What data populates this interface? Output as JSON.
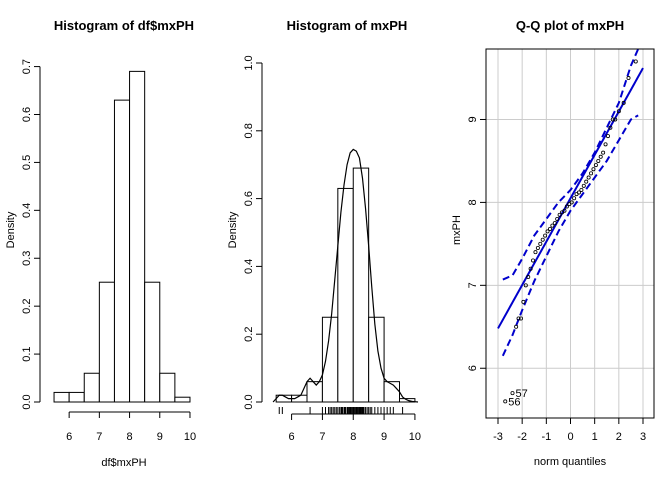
{
  "chart_data": [
    {
      "type": "bar",
      "title": "Histogram of df$mxPH",
      "xlabel": "df$mxPH",
      "ylabel": "Density",
      "xlim": [
        5.3,
        10.1
      ],
      "ylim": [
        0,
        0.72
      ],
      "x_ticks": [
        "6",
        "7",
        "8",
        "9",
        "10"
      ],
      "x_tick_values": [
        6,
        7,
        8,
        9,
        10
      ],
      "y_ticks": [
        "0.0",
        "0.1",
        "0.2",
        "0.3",
        "0.4",
        "0.5",
        "0.6",
        "0.7"
      ],
      "y_tick_values": [
        0,
        0.1,
        0.2,
        0.3,
        0.4,
        0.5,
        0.6,
        0.7
      ],
      "bins": [
        {
          "start": 5.5,
          "end": 6.0,
          "density": 0.02
        },
        {
          "start": 6.0,
          "end": 6.5,
          "density": 0.02
        },
        {
          "start": 6.5,
          "end": 7.0,
          "density": 0.06
        },
        {
          "start": 7.0,
          "end": 7.5,
          "density": 0.25
        },
        {
          "start": 7.5,
          "end": 8.0,
          "density": 0.63
        },
        {
          "start": 8.0,
          "end": 8.5,
          "density": 0.69
        },
        {
          "start": 8.5,
          "end": 9.0,
          "density": 0.25
        },
        {
          "start": 9.0,
          "end": 9.5,
          "density": 0.06
        },
        {
          "start": 9.5,
          "end": 10.0,
          "density": 0.01
        }
      ]
    },
    {
      "type": "bar",
      "title": "Histogram of mxPH",
      "xlabel": "",
      "ylabel": "Density",
      "xlim": [
        5.3,
        10.1
      ],
      "ylim": [
        0,
        1.0
      ],
      "x_ticks": [
        "6",
        "7",
        "8",
        "9",
        "10"
      ],
      "x_tick_values": [
        6,
        7,
        8,
        9,
        10
      ],
      "y_ticks": [
        "0.0",
        "0.2",
        "0.4",
        "0.6",
        "0.8",
        "1.0"
      ],
      "y_tick_values": [
        0,
        0.2,
        0.4,
        0.6,
        0.8,
        1.0
      ],
      "bins": [
        {
          "start": 5.5,
          "end": 6.0,
          "density": 0.02
        },
        {
          "start": 6.0,
          "end": 6.5,
          "density": 0.02
        },
        {
          "start": 6.5,
          "end": 7.0,
          "density": 0.06
        },
        {
          "start": 7.0,
          "end": 7.5,
          "density": 0.25
        },
        {
          "start": 7.5,
          "end": 8.0,
          "density": 0.63
        },
        {
          "start": 8.0,
          "end": 8.5,
          "density": 0.69
        },
        {
          "start": 8.5,
          "end": 9.0,
          "density": 0.25
        },
        {
          "start": 9.0,
          "end": 9.5,
          "density": 0.06
        },
        {
          "start": 9.5,
          "end": 10.0,
          "density": 0.01
        }
      ],
      "density_curve": {
        "x": [
          5.4,
          5.5,
          5.6,
          5.7,
          5.8,
          5.9,
          6.0,
          6.1,
          6.2,
          6.3,
          6.4,
          6.5,
          6.6,
          6.7,
          6.8,
          6.9,
          7.0,
          7.1,
          7.2,
          7.3,
          7.4,
          7.5,
          7.6,
          7.7,
          7.8,
          7.9,
          8.0,
          8.1,
          8.2,
          8.3,
          8.4,
          8.5,
          8.6,
          8.7,
          8.8,
          8.9,
          9.0,
          9.1,
          9.2,
          9.3,
          9.4,
          9.5,
          9.6,
          9.7,
          9.8,
          9.9,
          10.0,
          10.1
        ],
        "y": [
          0.0,
          0.01,
          0.02,
          0.02,
          0.015,
          0.01,
          0.01,
          0.01,
          0.015,
          0.02,
          0.04,
          0.06,
          0.07,
          0.06,
          0.05,
          0.06,
          0.08,
          0.12,
          0.18,
          0.26,
          0.36,
          0.46,
          0.56,
          0.64,
          0.7,
          0.735,
          0.745,
          0.74,
          0.72,
          0.66,
          0.57,
          0.46,
          0.34,
          0.23,
          0.15,
          0.1,
          0.07,
          0.06,
          0.055,
          0.05,
          0.04,
          0.03,
          0.015,
          0.008,
          0.004,
          0.002,
          0.001,
          0.0
        ]
      },
      "rug": [
        5.6,
        5.7,
        6.6,
        7.0,
        7.1,
        7.2,
        7.25,
        7.3,
        7.35,
        7.4,
        7.45,
        7.5,
        7.55,
        7.6,
        7.62,
        7.65,
        7.7,
        7.72,
        7.75,
        7.8,
        7.82,
        7.85,
        7.88,
        7.9,
        7.92,
        7.95,
        7.98,
        8.0,
        8.02,
        8.05,
        8.08,
        8.1,
        8.12,
        8.15,
        8.18,
        8.2,
        8.22,
        8.25,
        8.28,
        8.3,
        8.33,
        8.35,
        8.4,
        8.45,
        8.5,
        8.55,
        8.6,
        8.7,
        8.8,
        8.9,
        9.0,
        9.1,
        9.2,
        9.3,
        9.6
      ]
    },
    {
      "type": "scatter",
      "title": "Q-Q plot of mxPH",
      "xlabel": "norm quantiles",
      "ylabel": "mxPH",
      "xlim": [
        -3.0,
        3.0
      ],
      "ylim": [
        5.4,
        9.85
      ],
      "x_ticks": [
        "-3",
        "-2",
        "-1",
        "0",
        "1",
        "2",
        "3"
      ],
      "x_tick_values": [
        -3,
        -2,
        -1,
        0,
        1,
        2,
        3
      ],
      "y_ticks": [
        "6",
        "7",
        "8",
        "9"
      ],
      "y_tick_values": [
        6,
        7,
        8,
        9
      ],
      "grid": true,
      "points": {
        "x": [
          -2.7,
          -2.4,
          -2.25,
          -2.15,
          -2.05,
          -1.95,
          -1.85,
          -1.75,
          -1.65,
          -1.55,
          -1.45,
          -1.35,
          -1.25,
          -1.15,
          -1.05,
          -0.95,
          -0.85,
          -0.75,
          -0.65,
          -0.55,
          -0.45,
          -0.35,
          -0.25,
          -0.15,
          -0.05,
          0.05,
          0.15,
          0.25,
          0.35,
          0.45,
          0.55,
          0.65,
          0.75,
          0.85,
          0.95,
          1.05,
          1.15,
          1.25,
          1.35,
          1.45,
          1.55,
          1.65,
          1.75,
          1.85,
          2.0,
          2.2,
          2.4,
          2.7
        ],
        "y": [
          5.6,
          5.7,
          6.5,
          6.6,
          6.6,
          6.8,
          7.0,
          7.1,
          7.2,
          7.3,
          7.4,
          7.45,
          7.5,
          7.55,
          7.6,
          7.65,
          7.68,
          7.72,
          7.75,
          7.8,
          7.85,
          7.88,
          7.9,
          7.95,
          7.98,
          8.0,
          8.05,
          8.1,
          8.12,
          8.15,
          8.2,
          8.25,
          8.3,
          8.35,
          8.4,
          8.45,
          8.5,
          8.55,
          8.6,
          8.7,
          8.8,
          8.9,
          9.0,
          9.0,
          9.1,
          9.2,
          9.5,
          9.7
        ]
      },
      "reference_line": {
        "x": [
          -3.0,
          3.0
        ],
        "y": [
          6.48,
          9.62
        ]
      },
      "envelope_upper": {
        "x": [
          -2.8,
          -2.4,
          -2.0,
          -1.5,
          -1.0,
          -0.5,
          0.0,
          0.5,
          1.0,
          1.5,
          2.0,
          2.5,
          2.8
        ],
        "y": [
          7.07,
          7.12,
          7.32,
          7.6,
          7.8,
          8.0,
          8.15,
          8.35,
          8.6,
          8.9,
          9.2,
          9.65,
          9.85
        ]
      },
      "envelope_lower": {
        "x": [
          -2.8,
          -2.4,
          -2.0,
          -1.5,
          -1.0,
          -0.5,
          0.0,
          0.5,
          1.0,
          1.5,
          2.0,
          2.5,
          2.8
        ],
        "y": [
          6.15,
          6.4,
          6.7,
          7.05,
          7.35,
          7.65,
          7.9,
          8.1,
          8.3,
          8.5,
          8.75,
          9.0,
          9.05
        ]
      },
      "point_labels": [
        {
          "text": "57",
          "x": -2.4,
          "y": 5.7
        },
        {
          "text": "56",
          "x": -2.7,
          "y": 5.6
        }
      ],
      "colors": {
        "line": "#0000cc",
        "points": "#000000",
        "grid": "#cccccc"
      }
    }
  ]
}
